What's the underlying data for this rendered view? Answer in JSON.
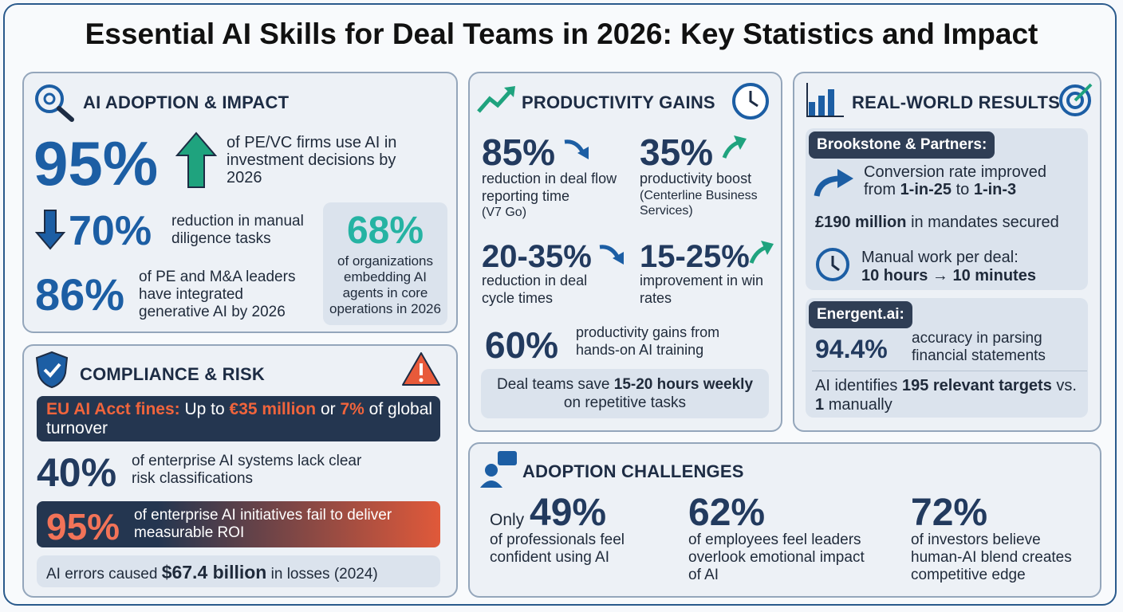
{
  "title": "Essential AI Skills for Deal Teams in 2026: Key Statistics and Impact",
  "adoption": {
    "heading": "AI ADOPTION & IMPACT",
    "stats": [
      {
        "value": "95%",
        "text": "of PE/VC firms use AI in investment decisions by 2026"
      },
      {
        "value": "70%",
        "text": "reduction in manual diligence tasks"
      },
      {
        "value": "86%",
        "text": "of PE and M&A leaders have integrated generative AI by 2026"
      }
    ],
    "side": {
      "value": "68%",
      "text": "of organizations embedding AI agents in core operations in 2026"
    }
  },
  "compliance": {
    "heading": "COMPLIANCE & RISK",
    "eu": {
      "lead": "EU AI Acct fines:",
      "pre": "Up to",
      "amount": "€35 million",
      "mid": "or",
      "pct": "7%",
      "post": "of global turnover"
    },
    "risk": {
      "value": "40%",
      "text": "of enterprise AI systems lack clear risk classifications"
    },
    "fail": {
      "value": "95%",
      "text": "of enterprise AI initiatives fail to deliver measurable ROI"
    },
    "losses": {
      "pre": "AI errors caused",
      "amount": "$67.4 billion",
      "post": "in losses (2024)"
    }
  },
  "productivity": {
    "heading": "PRODUCTIVITY GAINS",
    "stats": [
      {
        "value": "85%",
        "text": "reduction in deal flow reporting time",
        "source": "(V7 Go)"
      },
      {
        "value": "35%",
        "text": "productivity boost",
        "source": "(Centerline Business Services)"
      },
      {
        "value": "20-35%",
        "text": "reduction in deal cycle times"
      },
      {
        "value": "15-25%",
        "text": "improvement in win rates"
      },
      {
        "value": "60%",
        "text": "productivity gains from hands-on AI training"
      }
    ],
    "note": {
      "pre": "Deal teams save",
      "bold": "15-20 hours weekly",
      "post": "on repetitive tasks"
    }
  },
  "results": {
    "heading": "REAL-WORLD RESULTS",
    "brookstone": {
      "label": "Brookstone & Partners:",
      "conversion": {
        "pre": "Conversion rate improved from",
        "from": "1-in-25",
        "mid": "to",
        "to": "1-in-3"
      },
      "mandates": {
        "bold": "£190 million",
        "post": "in mandates secured"
      },
      "work": {
        "pre": "Manual work per deal:",
        "bold": "10 hours → 10 minutes"
      }
    },
    "energent": {
      "label": "Energent.ai:",
      "accuracy": {
        "value": "94.4%",
        "text": "accuracy in parsing financial statements"
      },
      "targets": {
        "pre": "AI identifies",
        "bold": "195 relevant targets",
        "mid": "vs.",
        "count": "1",
        "post": "manually"
      }
    }
  },
  "challenges": {
    "heading": "ADOPTION CHALLENGES",
    "stats": [
      {
        "prefix": "Only",
        "value": "49%",
        "text": "of professionals feel confident using AI"
      },
      {
        "value": "62%",
        "text": "of employees feel leaders overlook emotional impact of AI"
      },
      {
        "value": "72%",
        "text": "of investors believe human-AI blend creates competitive edge"
      }
    ]
  }
}
